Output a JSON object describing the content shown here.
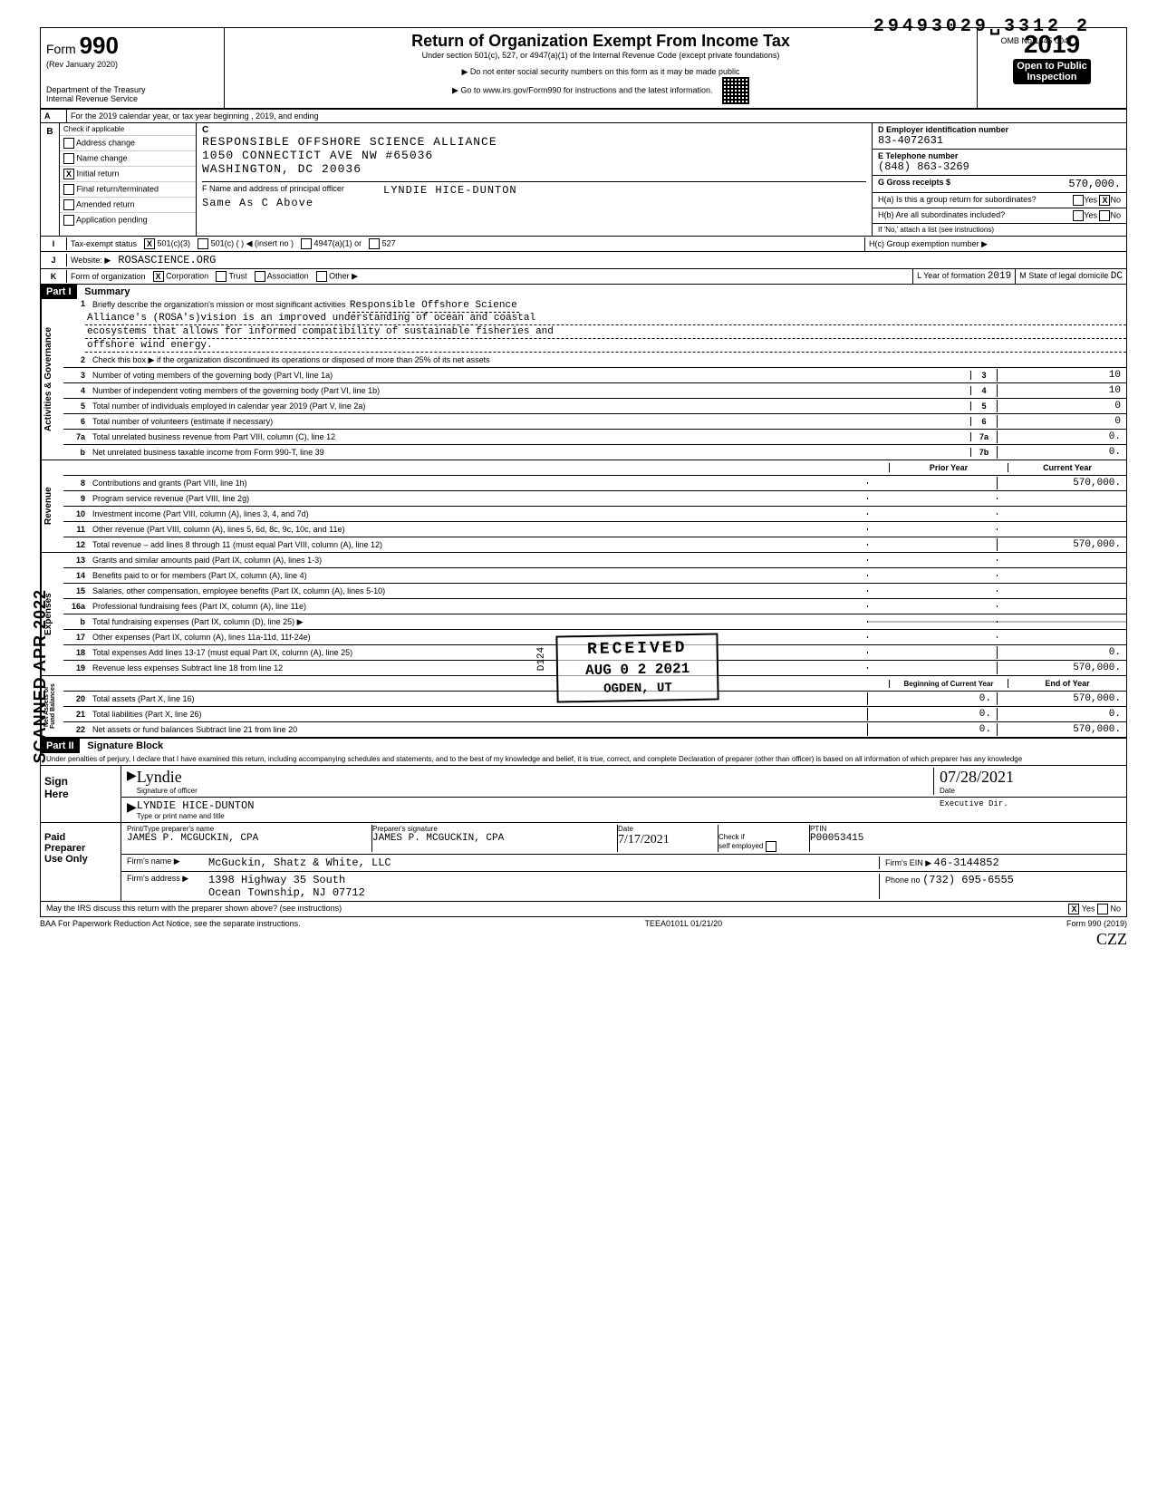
{
  "stamp_number": "29493029␣3312 2",
  "omb": "OMB No 1545 0047",
  "form_label": "Form",
  "form_number": "990",
  "rev": "(Rev  January 2020)",
  "dept": "Department of the Treasury\nInternal Revenue Service",
  "title": "Return of Organization Exempt From Income Tax",
  "subtitle1": "Under section 501(c), 527, or 4947(a)(1) of the Internal Revenue Code (except private foundations)",
  "subtitle2": "▶ Do not enter social security numbers on this form as it may be made public",
  "subtitle3": "▶ Go to www.irs.gov/Form990 for instructions and the latest information.",
  "year": "2019",
  "open_public": "Open to Public\nInspection",
  "line_a": "For the 2019 calendar year, or tax year beginning                                          , 2019, and ending",
  "b": {
    "header": "Check if applicable",
    "items": [
      "Address change",
      "Name change",
      "Initial return",
      "Final return/terminated",
      "Amended return",
      "Application pending"
    ],
    "checked_index": 2,
    "c_label": "C",
    "name": "RESPONSIBLE OFFSHORE SCIENCE ALLIANCE",
    "addr1": "1050 CONNECTICT AVE NW #65036",
    "addr2": "WASHINGTON, DC 20036",
    "f_label": "F  Name and address of principal officer",
    "f_name": "LYNDIE HICE-DUNTON",
    "f_addr": "Same As C Above",
    "d_label": "D  Employer identification number",
    "d_value": "83-4072631",
    "e_label": "E  Telephone number",
    "e_value": "(848) 863-3269",
    "g_label": "G  Gross receipts $",
    "g_value": "570,000.",
    "ha_label": "H(a) Is this a group return for subordinates?",
    "ha_no_checked": true,
    "hb_label": "H(b) Are all subordinates included?",
    "hb_note": "If 'No,' attach a list (see instructions)",
    "hc_label": "H(c) Group exemption number ▶"
  },
  "i": {
    "label": "Tax-exempt status",
    "c3_checked": true,
    "opts": [
      "501(c)(3)",
      "501(c) (          ) ◀  (insert no )",
      "4947(a)(1) or",
      "527"
    ]
  },
  "j": {
    "label": "Website: ▶",
    "value": "ROSASCIENCE.ORG"
  },
  "k": {
    "label": "Form of organization",
    "corp_checked": true,
    "opts": [
      "Corporation",
      "Trust",
      "Association",
      "Other ▶"
    ],
    "year_label": "L Year of formation",
    "year_value": "2019",
    "state_label": "M State of legal domicile",
    "state_value": "DC"
  },
  "part1": {
    "header": "Part I",
    "title": "Summary",
    "mission_label": "Briefly describe the organization's mission or most significant activities",
    "mission_l1": "Responsible Offshore Science",
    "mission_l2": "Alliance's (ROSA's)vision is an improved understanding of ocean and coastal",
    "mission_l3": "ecosystems that allows for informed compatibility of sustainable fisheries and",
    "mission_l4": "offshore wind energy.",
    "line2": "Check this box ▶      if the organization discontinued its operations or disposed of more than 25% of its net assets",
    "lines_gov": [
      {
        "n": "3",
        "d": "Number of voting members of the governing body (Part VI, line 1a)",
        "lbl": "3",
        "v": "10"
      },
      {
        "n": "4",
        "d": "Number of independent voting members of the governing body (Part VI, line 1b)",
        "lbl": "4",
        "v": "10"
      },
      {
        "n": "5",
        "d": "Total number of individuals employed in calendar year 2019 (Part V, line 2a)",
        "lbl": "5",
        "v": "0"
      },
      {
        "n": "6",
        "d": "Total number of volunteers (estimate if necessary)",
        "lbl": "6",
        "v": "0"
      },
      {
        "n": "7a",
        "d": "Total unrelated business revenue from Part VIII, column (C), line 12",
        "lbl": "7a",
        "v": "0."
      },
      {
        "n": "b",
        "d": "Net unrelated business taxable income from Form 990-T, line 39",
        "lbl": "7b",
        "v": "0."
      }
    ],
    "col_prior": "Prior Year",
    "col_curr": "Current Year",
    "lines_rev": [
      {
        "n": "8",
        "d": "Contributions and grants (Part VIII, line 1h)",
        "p": "",
        "c": "570,000."
      },
      {
        "n": "9",
        "d": "Program service revenue (Part VIII, line 2g)",
        "p": "",
        "c": ""
      },
      {
        "n": "10",
        "d": "Investment income (Part VIII, column (A), lines 3, 4, and 7d)",
        "p": "",
        "c": ""
      },
      {
        "n": "11",
        "d": "Other revenue (Part VIII, column (A), lines 5, 6d, 8c, 9c, 10c, and 11e)",
        "p": "",
        "c": ""
      },
      {
        "n": "12",
        "d": "Total revenue – add lines 8 through 11 (must equal Part VIII, column (A), line 12)",
        "p": "",
        "c": "570,000."
      }
    ],
    "lines_exp": [
      {
        "n": "13",
        "d": "Grants and similar amounts paid (Part IX, column (A), lines 1-3)",
        "p": "",
        "c": ""
      },
      {
        "n": "14",
        "d": "Benefits paid to or for members (Part IX, column (A), line 4)",
        "p": "",
        "c": ""
      },
      {
        "n": "15",
        "d": "Salaries, other compensation, employee benefits (Part IX, column (A), lines 5-10)",
        "p": "",
        "c": ""
      },
      {
        "n": "16a",
        "d": "Professional fundraising fees (Part IX, column (A), line 11e)",
        "p": "",
        "c": ""
      },
      {
        "n": "b",
        "d": "Total fundraising expenses (Part IX, column (D), line 25) ▶",
        "shade_right": true
      },
      {
        "n": "17",
        "d": "Other expenses (Part IX, column (A), lines 11a-11d, 11f-24e)",
        "p": "",
        "c": ""
      },
      {
        "n": "18",
        "d": "Total expenses Add lines 13-17 (must equal Part IX, column (A), line 25)",
        "p": "",
        "c": "0."
      },
      {
        "n": "19",
        "d": "Revenue less expenses Subtract line 18 from line 12",
        "p": "",
        "c": "570,000."
      }
    ],
    "col_boy": "Beginning of Current Year",
    "col_eoy": "End of Year",
    "lines_net": [
      {
        "n": "20",
        "d": "Total assets (Part X, line 16)",
        "p": "0.",
        "c": "570,000."
      },
      {
        "n": "21",
        "d": "Total liabilities (Part X, line 26)",
        "p": "0.",
        "c": "0."
      },
      {
        "n": "22",
        "d": "Net assets or fund balances Subtract line 21 from line 20",
        "p": "0.",
        "c": "570,000."
      }
    ],
    "vlabels": [
      "Activities & Governance",
      "Revenue",
      "Expenses",
      "Net Assets or\nFund Balances"
    ]
  },
  "part2": {
    "header": "Part II",
    "title": "Signature Block",
    "perjury": "Under penalties of perjury, I declare that I have examined this return, including accompanying schedules and statements, and to the best of my knowledge and belief, it is true, correct, and complete Declaration of preparer (other than officer) is based on all information of which preparer has any knowledge",
    "sign_here": "Sign\nHere",
    "sig_label": "Signature of officer",
    "sig_date": "07/28/2021",
    "date_label": "Date",
    "officer_name": "LYNDIE HICE-DUNTON",
    "officer_title": "Executive Dir.",
    "type_label": "Type or print name and title",
    "paid": "Paid\nPreparer\nUse Only",
    "prep_name_label": "Print/Type preparer's name",
    "prep_name": "JAMES P. MCGUCKIN, CPA",
    "prep_sig_label": "Preparer's signature",
    "prep_sig": "JAMES P. MCGUCKIN, CPA",
    "prep_date": "7/17/2021",
    "check_self": "Check          if\nself employed",
    "ptin_label": "PTIN",
    "ptin": "P00053415",
    "firm_label": "Firm's name    ▶",
    "firm_name": "McGuckin, Shatz & White, LLC",
    "firm_addr_label": "Firm's address ▶",
    "firm_addr1": "1398 Highway 35 South",
    "firm_addr2": "Ocean Township, NJ 07712",
    "ein_label": "Firm's EIN ▶",
    "ein": "46-3144852",
    "phone_label": "Phone no",
    "phone": "(732) 695-6555",
    "discuss": "May the IRS discuss this return with the preparer shown above? (see instructions)",
    "discuss_yes_checked": true
  },
  "baa": "BAA For Paperwork Reduction Act Notice, see the separate instructions.",
  "teea": "TEEA0101L 01/21/20",
  "form_foot": "Form 990 (2019)",
  "stamp_received": {
    "l1": "RECEIVED",
    "l2": "AUG 0 2 2021",
    "l3": "OGDEN, UT"
  },
  "stamp_scanned": "SCANNED APR  2022",
  "stamp_d124": "D124",
  "hand_init": "CZZ"
}
